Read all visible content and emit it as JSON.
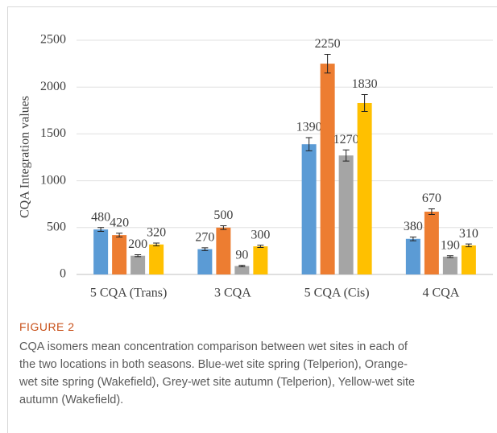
{
  "chart_data": {
    "type": "bar",
    "y_axis_label": "CQA Integration values",
    "categories": [
      "5 CQA (Trans)",
      "3 CQA",
      "5 CQA (Cis)",
      "4 CQA"
    ],
    "series": [
      {
        "color": "#5b9bd5",
        "values": [
          480,
          270,
          1390,
          380
        ],
        "errors": [
          20,
          15,
          70,
          20
        ]
      },
      {
        "color": "#ed7d31",
        "values": [
          420,
          500,
          2250,
          670
        ],
        "errors": [
          20,
          20,
          100,
          30
        ]
      },
      {
        "color": "#a5a5a5",
        "values": [
          200,
          90,
          1270,
          190
        ],
        "errors": [
          10,
          8,
          60,
          10
        ]
      },
      {
        "color": "#ffc000",
        "values": [
          320,
          300,
          1830,
          310
        ],
        "errors": [
          15,
          12,
          90,
          15
        ]
      }
    ],
    "ylim": [
      0,
      2500
    ],
    "yticks": [
      0,
      500,
      1000,
      1500,
      2000,
      2500
    ],
    "grid": true
  },
  "caption": {
    "label": "FIGURE 2",
    "text": "CQA isomers mean concentration comparison between wet sites in each of the two locations in both seasons. Blue-wet site spring (Telperion), Orange-wet site spring (Wakefield), Grey-wet site autumn (Telperion), Yellow-wet site autumn (Wakefield)."
  }
}
